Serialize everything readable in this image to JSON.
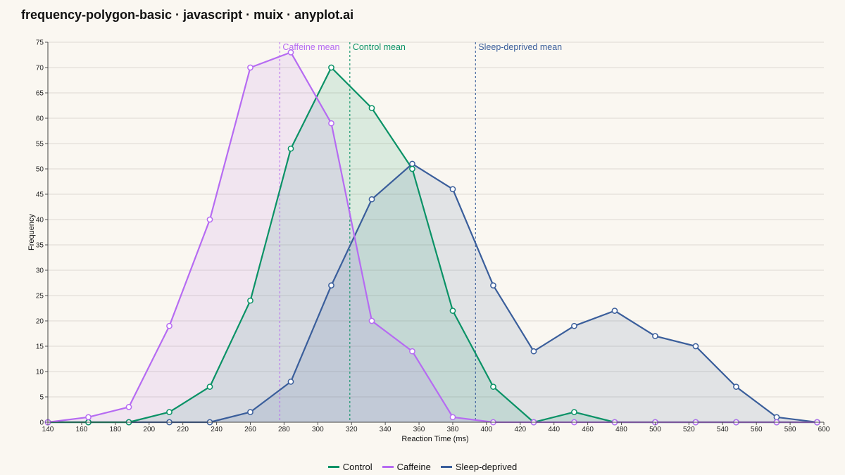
{
  "header": {
    "title": "frequency-polygon-basic · javascript · muix · anyplot.ai"
  },
  "chart_data": {
    "type": "line",
    "xlabel": "Reaction Time (ms)",
    "ylabel": "Frequency",
    "xlim": [
      140,
      600
    ],
    "ylim": [
      0,
      75
    ],
    "x_ticks": [
      140,
      160,
      180,
      200,
      220,
      240,
      260,
      280,
      300,
      320,
      340,
      360,
      380,
      400,
      420,
      440,
      460,
      480,
      500,
      520,
      540,
      560,
      580,
      600
    ],
    "y_ticks": [
      0,
      5,
      10,
      15,
      20,
      25,
      30,
      35,
      40,
      45,
      50,
      55,
      60,
      65,
      70,
      75
    ],
    "grid": true,
    "legend_position": "bottom-center",
    "x": [
      140,
      164,
      188,
      212,
      236,
      260,
      284,
      308,
      332,
      356,
      380,
      404,
      428,
      452,
      476,
      500,
      524,
      548,
      572,
      596
    ],
    "series": [
      {
        "name": "Sleep-deprived",
        "color": "#3A5E9B",
        "values": [
          0,
          0,
          0,
          0,
          0,
          2,
          8,
          27,
          44,
          51,
          46,
          27,
          14,
          19,
          22,
          17,
          15,
          7,
          1,
          0
        ]
      },
      {
        "name": "Control",
        "color": "#0A9266",
        "values": [
          0,
          0,
          0,
          2,
          7,
          24,
          54,
          70,
          62,
          50,
          22,
          7,
          0,
          2,
          0,
          0,
          0,
          0,
          0,
          0
        ]
      },
      {
        "name": "Caffeine",
        "color": "#B66BF2",
        "values": [
          0,
          1,
          3,
          19,
          40,
          70,
          73,
          59,
          20,
          14,
          1,
          0,
          0,
          0,
          0,
          0,
          0,
          0,
          0,
          0
        ]
      }
    ],
    "legend_order": [
      "Control",
      "Caffeine",
      "Sleep-deprived"
    ],
    "mean_lines": [
      {
        "label": "Caffeine mean",
        "x": 277.5,
        "series": "Caffeine"
      },
      {
        "label": "Control mean",
        "x": 319,
        "series": "Control"
      },
      {
        "label": "Sleep-deprived mean",
        "x": 393.5,
        "series": "Sleep-deprived"
      }
    ]
  }
}
